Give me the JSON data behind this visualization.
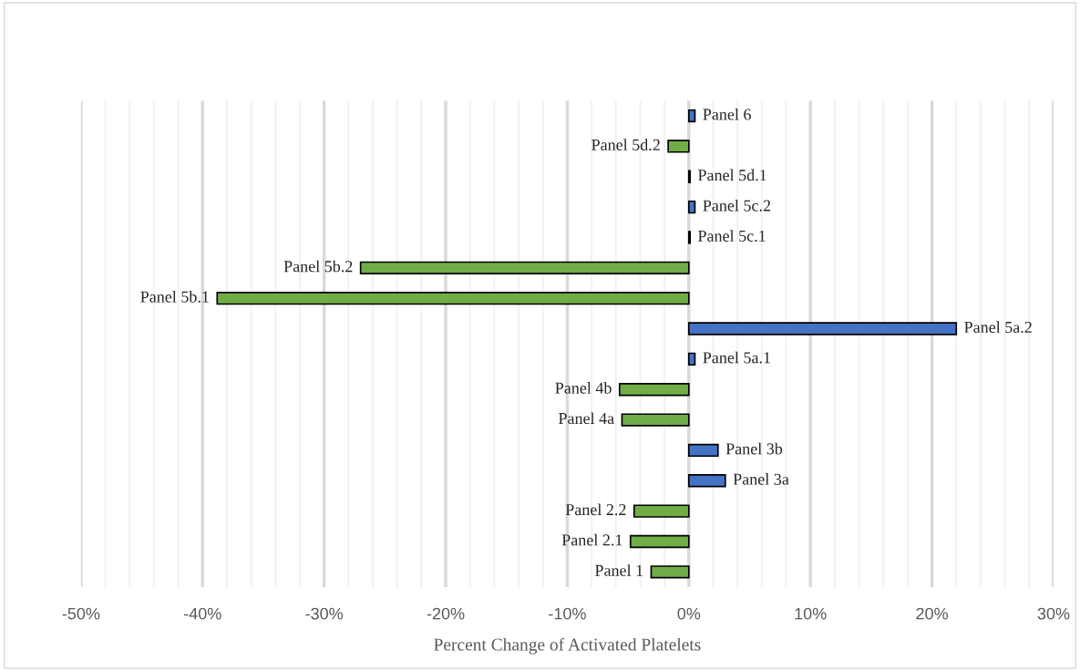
{
  "chart_data": {
    "type": "bar",
    "orientation": "horizontal",
    "xlabel": "Percent Change of Activated Platelets",
    "categories": [
      "Panel 6",
      "Panel 5d.2",
      "Panel 5d.1",
      "Panel 5c.2",
      "Panel 5c.1",
      "Panel 5b.2",
      "Panel 5b.1",
      "Panel 5a.2",
      "Panel 5a.1",
      "Panel 4b",
      "Panel 4a",
      "Panel 3b",
      "Panel 3a",
      "Panel 2.2",
      "Panel 2.1",
      "Panel 1"
    ],
    "values": [
      0.5,
      -1.7,
      0.1,
      0.5,
      0.1,
      -27.0,
      -38.8,
      22.0,
      0.5,
      -5.7,
      -5.5,
      2.4,
      3.0,
      -4.5,
      -4.8,
      -3.1
    ],
    "colors": [
      "#4472c4",
      "#70ad47",
      "#4472c4",
      "#4472c4",
      "#4472c4",
      "#70ad47",
      "#70ad47",
      "#4472c4",
      "#4472c4",
      "#70ad47",
      "#70ad47",
      "#4472c4",
      "#4472c4",
      "#70ad47",
      "#70ad47",
      "#70ad47"
    ],
    "xlim": [
      -50,
      30
    ],
    "xticks": [
      {
        "value": -50,
        "label": "-50%"
      },
      {
        "value": -48,
        "label": null
      },
      {
        "value": -46,
        "label": null
      },
      {
        "value": -44,
        "label": null
      },
      {
        "value": -42,
        "label": null
      },
      {
        "value": -40,
        "label": "-40%"
      },
      {
        "value": -38,
        "label": null
      },
      {
        "value": -36,
        "label": null
      },
      {
        "value": -34,
        "label": null
      },
      {
        "value": -32,
        "label": null
      },
      {
        "value": -30,
        "label": "-30%"
      },
      {
        "value": -28,
        "label": null
      },
      {
        "value": -26,
        "label": null
      },
      {
        "value": -24,
        "label": null
      },
      {
        "value": -22,
        "label": null
      },
      {
        "value": -20,
        "label": "-20%"
      },
      {
        "value": -18,
        "label": null
      },
      {
        "value": -16,
        "label": null
      },
      {
        "value": -14,
        "label": null
      },
      {
        "value": -12,
        "label": null
      },
      {
        "value": -10,
        "label": "-10%"
      },
      {
        "value": -8,
        "label": null
      },
      {
        "value": -6,
        "label": null
      },
      {
        "value": -4,
        "label": null
      },
      {
        "value": -2,
        "label": null
      },
      {
        "value": 0,
        "label": "0%"
      },
      {
        "value": 2,
        "label": null
      },
      {
        "value": 4,
        "label": null
      },
      {
        "value": 6,
        "label": null
      },
      {
        "value": 8,
        "label": null
      },
      {
        "value": 10,
        "label": "10%"
      },
      {
        "value": 12,
        "label": null
      },
      {
        "value": 14,
        "label": null
      },
      {
        "value": 16,
        "label": null
      },
      {
        "value": 18,
        "label": null
      },
      {
        "value": 20,
        "label": "20%"
      },
      {
        "value": 22,
        "label": null
      },
      {
        "value": 24,
        "label": null
      },
      {
        "value": 26,
        "label": null
      },
      {
        "value": 28,
        "label": null
      },
      {
        "value": 30,
        "label": "30%"
      }
    ],
    "grid": "x",
    "tick_labels": "x",
    "legend": false
  }
}
